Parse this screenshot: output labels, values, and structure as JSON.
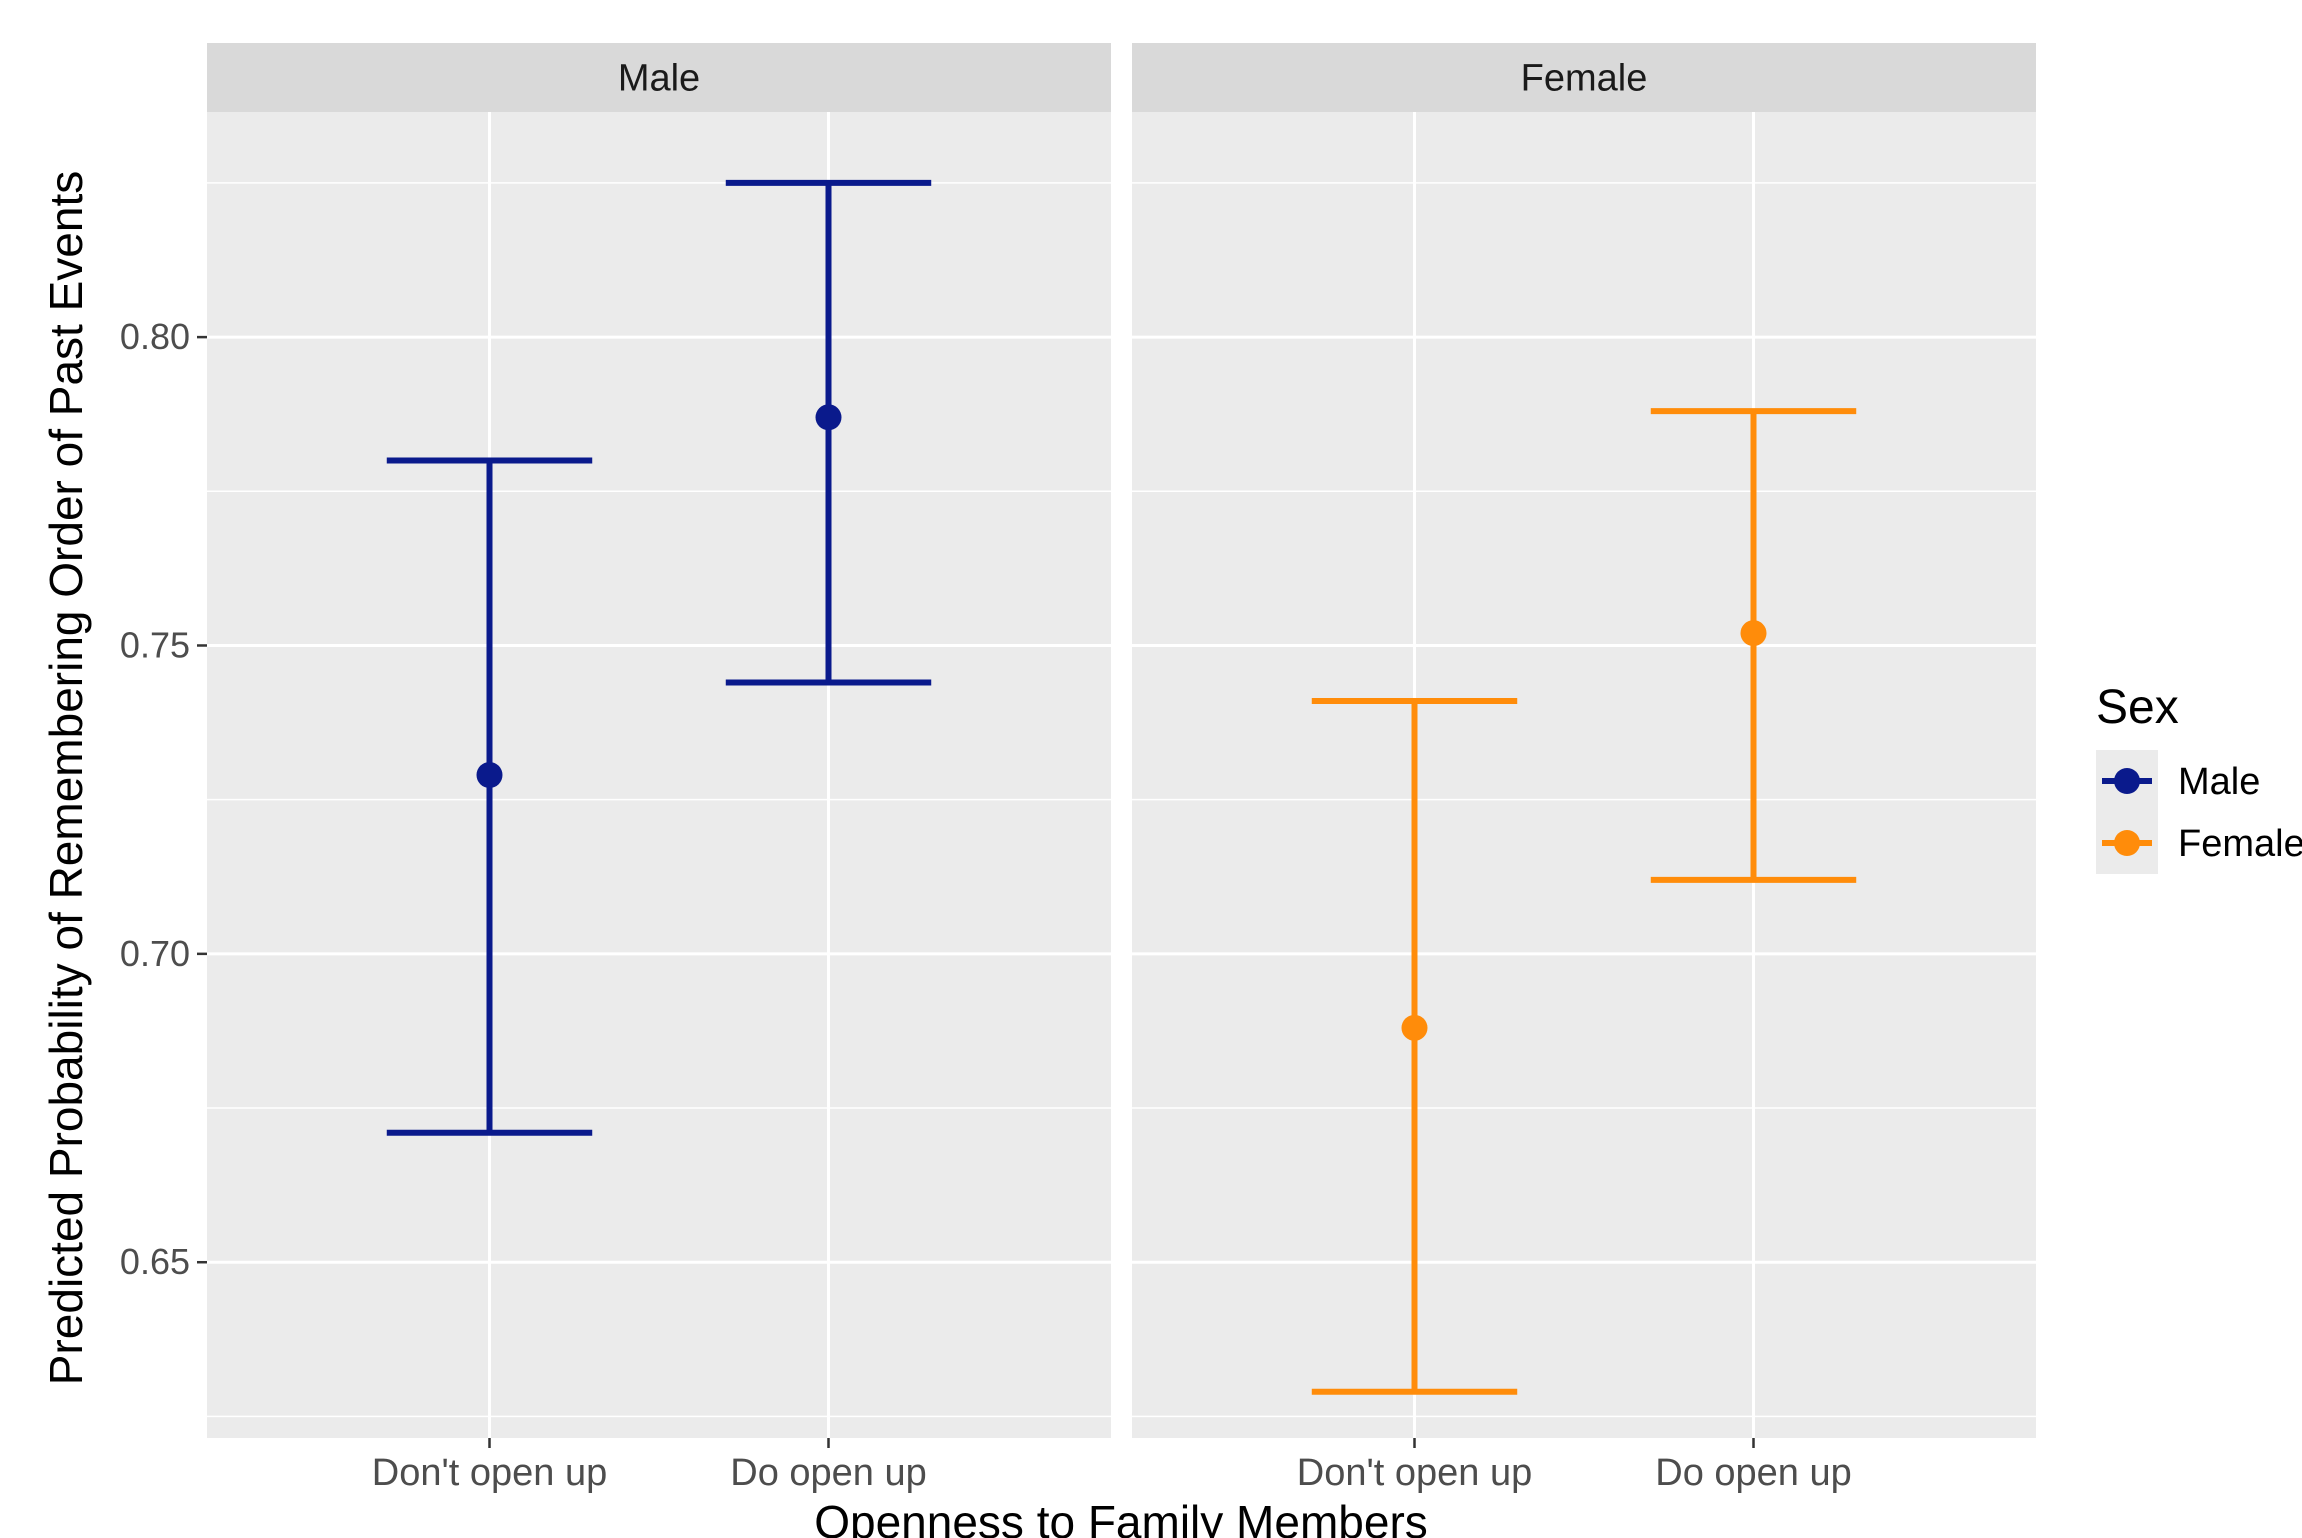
{
  "chart_data": {
    "type": "errorbar",
    "facet_variable": "Sex",
    "panels": [
      "Male",
      "Female"
    ],
    "categories": [
      "Don't open up",
      "Do open up"
    ],
    "xlabel": "Openness to Family Members",
    "ylabel": "Predicted Probability of Remembering Order of Past Events",
    "ylim": [
      0.6215,
      0.8365
    ],
    "yticks": [
      0.65,
      0.7,
      0.75,
      0.8
    ],
    "ytick_labels": [
      "0.65",
      "0.70",
      "0.75",
      "0.80"
    ],
    "grid": true,
    "legend": {
      "title": "Sex",
      "position": "right",
      "entries": [
        "Male",
        "Female"
      ]
    },
    "series": [
      {
        "name": "Male",
        "color": "#0a1a8c",
        "panel": "Male",
        "points": [
          {
            "category": "Don't open up",
            "estimate": 0.729,
            "lower": 0.671,
            "upper": 0.78
          },
          {
            "category": "Do open up",
            "estimate": 0.787,
            "lower": 0.744,
            "upper": 0.825
          }
        ]
      },
      {
        "name": "Female",
        "color": "#ff8c0a",
        "panel": "Female",
        "points": [
          {
            "category": "Don't open up",
            "estimate": 0.688,
            "lower": 0.629,
            "upper": 0.741
          },
          {
            "category": "Do open up",
            "estimate": 0.752,
            "lower": 0.712,
            "upper": 0.788
          }
        ]
      }
    ]
  }
}
